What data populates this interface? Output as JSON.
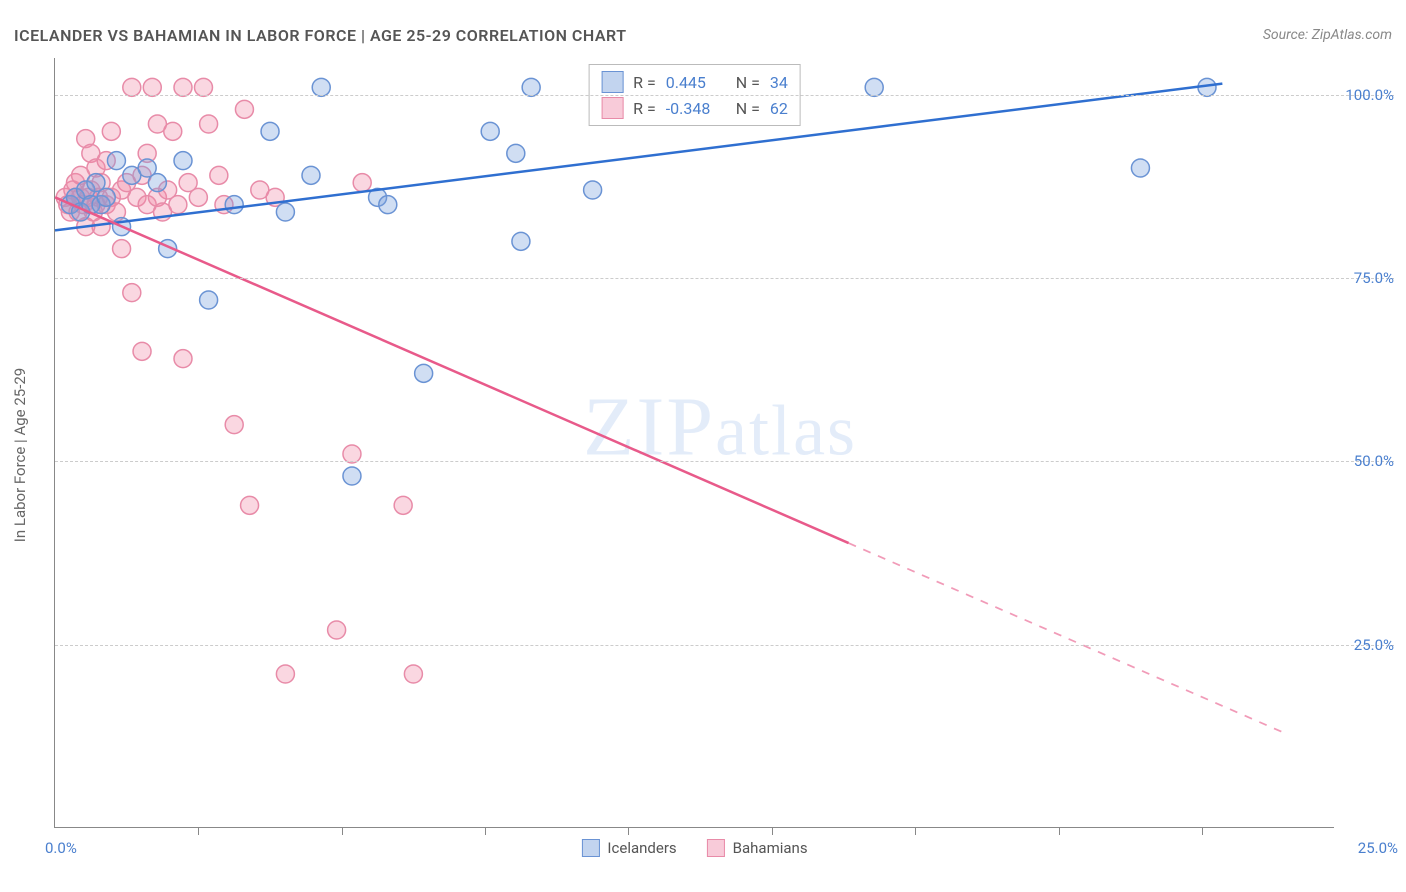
{
  "header": {
    "title": "ICELANDER VS BAHAMIAN IN LABOR FORCE | AGE 25-29 CORRELATION CHART",
    "source": "Source: ZipAtlas.com"
  },
  "chart": {
    "type": "scatter",
    "y_axis_label": "In Labor Force | Age 25-29",
    "x_origin_label": "0.0%",
    "x_end_label": "25.0%",
    "xlim": [
      0,
      25
    ],
    "ylim": [
      0,
      105
    ],
    "y_ticks": [
      {
        "value": 25,
        "label": "25.0%"
      },
      {
        "value": 50,
        "label": "50.0%"
      },
      {
        "value": 75,
        "label": "75.0%"
      },
      {
        "value": 100,
        "label": "100.0%"
      }
    ],
    "x_tick_positions": [
      2.8,
      5.6,
      8.4,
      11.2,
      14.0,
      16.8,
      19.6,
      22.4
    ],
    "background_color": "#ffffff",
    "grid_color": "#cccccc",
    "axis_color": "#888888",
    "marker_radius": 9,
    "marker_stroke_width": 1.5,
    "trend_line_width": 2.5,
    "series": [
      {
        "name": "Icelanders",
        "fill": "rgba(120,160,220,0.35)",
        "stroke": "#6a93d4",
        "swatch_fill": "rgba(120,160,220,0.45)",
        "swatch_stroke": "#6a93d4",
        "r_value": "0.445",
        "n_value": "34",
        "trend": {
          "x1": 0,
          "y1": 81.5,
          "x2": 22.8,
          "y2": 101.5,
          "solid_to_x": 22.8,
          "color": "#2f6fd0"
        },
        "points": [
          [
            0.3,
            85
          ],
          [
            0.4,
            86
          ],
          [
            0.5,
            84
          ],
          [
            0.6,
            87
          ],
          [
            0.7,
            85
          ],
          [
            0.8,
            88
          ],
          [
            0.9,
            85
          ],
          [
            1.0,
            86
          ],
          [
            1.2,
            91
          ],
          [
            1.3,
            82
          ],
          [
            1.5,
            89
          ],
          [
            1.8,
            90
          ],
          [
            2.0,
            88
          ],
          [
            2.2,
            79
          ],
          [
            2.5,
            91
          ],
          [
            3.0,
            72
          ],
          [
            3.5,
            85
          ],
          [
            4.2,
            95
          ],
          [
            4.5,
            84
          ],
          [
            5.0,
            89
          ],
          [
            5.2,
            101
          ],
          [
            5.8,
            48
          ],
          [
            6.3,
            86
          ],
          [
            6.5,
            85
          ],
          [
            7.2,
            62
          ],
          [
            8.5,
            95
          ],
          [
            9.0,
            92
          ],
          [
            9.1,
            80
          ],
          [
            9.3,
            101
          ],
          [
            10.5,
            87
          ],
          [
            14.0,
            101
          ],
          [
            16.0,
            101
          ],
          [
            21.2,
            90
          ],
          [
            22.5,
            101
          ]
        ]
      },
      {
        "name": "Bahamians",
        "fill": "rgba(240,140,170,0.35)",
        "stroke": "#e88ba8",
        "swatch_fill": "rgba(240,140,170,0.45)",
        "swatch_stroke": "#e88ba8",
        "r_value": "-0.348",
        "n_value": "62",
        "trend": {
          "x1": 0,
          "y1": 86,
          "x2": 24,
          "y2": 13,
          "solid_to_x": 15.5,
          "color": "#e85a8a"
        },
        "points": [
          [
            0.2,
            86
          ],
          [
            0.25,
            85
          ],
          [
            0.3,
            84
          ],
          [
            0.35,
            87
          ],
          [
            0.4,
            86
          ],
          [
            0.4,
            88
          ],
          [
            0.45,
            84
          ],
          [
            0.5,
            86
          ],
          [
            0.5,
            89
          ],
          [
            0.55,
            85
          ],
          [
            0.6,
            94
          ],
          [
            0.6,
            82
          ],
          [
            0.65,
            86
          ],
          [
            0.7,
            87
          ],
          [
            0.7,
            92
          ],
          [
            0.75,
            84
          ],
          [
            0.8,
            85
          ],
          [
            0.8,
            90
          ],
          [
            0.85,
            86
          ],
          [
            0.9,
            88
          ],
          [
            0.9,
            82
          ],
          [
            1.0,
            85
          ],
          [
            1.0,
            91
          ],
          [
            1.1,
            86
          ],
          [
            1.1,
            95
          ],
          [
            1.2,
            84
          ],
          [
            1.3,
            87
          ],
          [
            1.3,
            79
          ],
          [
            1.4,
            88
          ],
          [
            1.5,
            101
          ],
          [
            1.5,
            73
          ],
          [
            1.6,
            86
          ],
          [
            1.7,
            89
          ],
          [
            1.7,
            65
          ],
          [
            1.8,
            92
          ],
          [
            1.8,
            85
          ],
          [
            1.9,
            101
          ],
          [
            2.0,
            86
          ],
          [
            2.0,
            96
          ],
          [
            2.1,
            84
          ],
          [
            2.2,
            87
          ],
          [
            2.3,
            95
          ],
          [
            2.4,
            85
          ],
          [
            2.5,
            101
          ],
          [
            2.5,
            64
          ],
          [
            2.6,
            88
          ],
          [
            2.8,
            86
          ],
          [
            2.9,
            101
          ],
          [
            3.0,
            96
          ],
          [
            3.2,
            89
          ],
          [
            3.3,
            85
          ],
          [
            3.5,
            55
          ],
          [
            3.7,
            98
          ],
          [
            3.8,
            44
          ],
          [
            4.0,
            87
          ],
          [
            4.3,
            86
          ],
          [
            4.5,
            21
          ],
          [
            5.5,
            27
          ],
          [
            5.8,
            51
          ],
          [
            6.0,
            88
          ],
          [
            6.8,
            44
          ],
          [
            7.0,
            21
          ]
        ]
      }
    ],
    "bottom_legend": [
      {
        "label": "Icelanders",
        "series_index": 0
      },
      {
        "label": "Bahamians",
        "series_index": 1
      }
    ]
  },
  "watermark": {
    "text_pre": "ZIP",
    "text_post": "atlas"
  }
}
